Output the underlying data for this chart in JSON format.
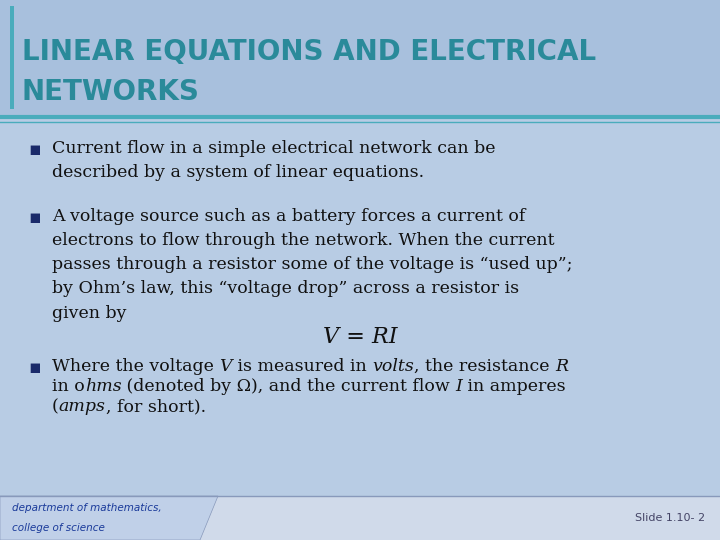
{
  "title_line1": "LINEAR EQUATIONS AND ELECTRICAL",
  "title_line2": "NETWORKS",
  "title_color": "#2a8a9a",
  "header_bg": "#a8c0dd",
  "body_bg": "#b8cce4",
  "separator_color": "#4aacbc",
  "bullet_marker": "§",
  "bullet_color": "#1a2a6a",
  "bullet1": "Current flow in a simple electrical network can be\ndescribed by a system of linear equations.",
  "bullet2": "A voltage source such as a battery forces a current of\nelectrons to flow through the network. When the current\npasses through a resistor some of the voltage is “used up”;\nby Ohm’s law, this “voltage drop” across a resistor is\ngiven by",
  "formula": "V = RI",
  "footer_left_line1": "department of mathematics,",
  "footer_left_line2": "college of science",
  "footer_right": "Slide 1.10- 2",
  "footer_text_color": "#1a3a9a",
  "footer_bg": "#d0daea",
  "title_fontsize": 20,
  "body_fontsize": 12.5,
  "formula_fontsize": 16,
  "footer_fontsize": 7.5
}
